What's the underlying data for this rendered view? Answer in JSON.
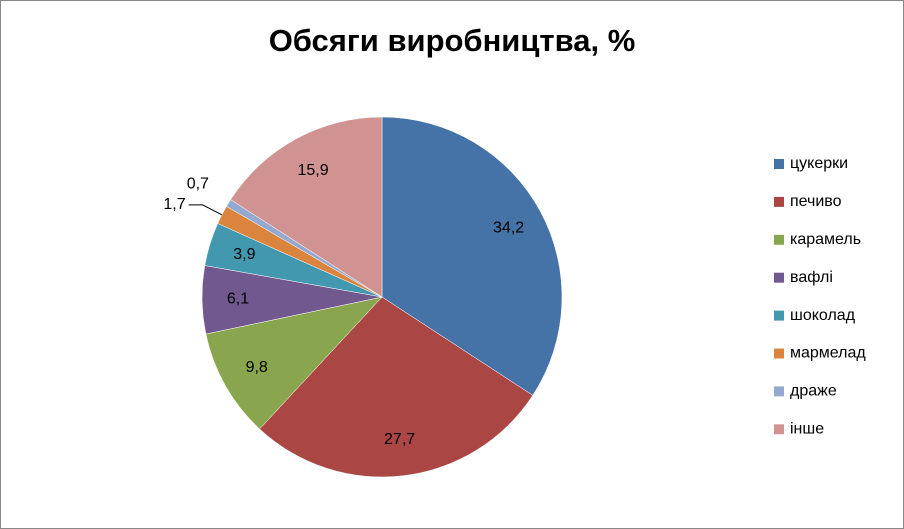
{
  "chart_data": {
    "type": "pie",
    "title": "Обсяги виробництва, %",
    "categories": [
      "цукерки",
      "печиво",
      "карамель",
      "вафлі",
      "шоколад",
      "мармелад",
      "драже",
      "інше"
    ],
    "values": [
      34.2,
      27.7,
      9.8,
      6.1,
      3.9,
      1.7,
      0.7,
      15.9
    ],
    "value_labels": [
      "34,2",
      "27,7",
      "9,8",
      "6,1",
      "3,9",
      "1,7",
      "0,7",
      "15,9"
    ],
    "colors": [
      "#4572a7",
      "#aa4643",
      "#89a54e",
      "#71588f",
      "#4198af",
      "#db843d",
      "#93a9cf",
      "#d19392"
    ],
    "legend": "right"
  }
}
